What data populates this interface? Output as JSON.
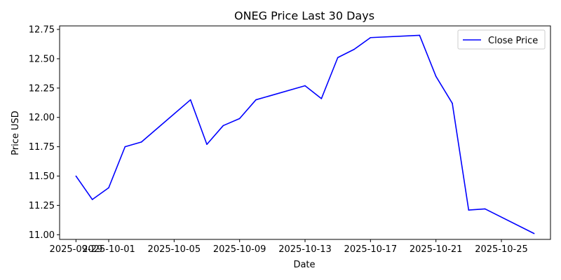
{
  "chart_data": {
    "type": "line",
    "title": "ONEG Price Last 30 Days",
    "xlabel": "Date",
    "ylabel": "Price USD",
    "grid": false,
    "legend_position": "top-right",
    "x_tick_labels": [
      "2025-09-29",
      "2025-10-01",
      "2025-10-05",
      "2025-10-09",
      "2025-10-13",
      "2025-10-17",
      "2025-10-21",
      "2025-10-25"
    ],
    "y_tick_labels": [
      "11.00",
      "11.25",
      "11.50",
      "11.75",
      "12.00",
      "12.25",
      "12.50",
      "12.75"
    ],
    "ylim": [
      10.96,
      12.78
    ],
    "xlim": [
      "2025-09-28",
      "2025-10-28"
    ],
    "series": [
      {
        "name": "Close Price",
        "color": "#0000ff",
        "x": [
          "2025-09-29",
          "2025-09-30",
          "2025-10-01",
          "2025-10-02",
          "2025-10-03",
          "2025-10-06",
          "2025-10-07",
          "2025-10-08",
          "2025-10-09",
          "2025-10-10",
          "2025-10-13",
          "2025-10-14",
          "2025-10-15",
          "2025-10-16",
          "2025-10-17",
          "2025-10-20",
          "2025-10-21",
          "2025-10-22",
          "2025-10-23",
          "2025-10-24",
          "2025-10-27"
        ],
        "values": [
          11.5,
          11.3,
          11.4,
          11.75,
          11.79,
          12.15,
          11.77,
          11.93,
          11.99,
          12.15,
          12.27,
          12.16,
          12.51,
          12.58,
          12.68,
          12.7,
          12.35,
          12.12,
          11.21,
          11.22,
          11.01
        ]
      }
    ]
  }
}
